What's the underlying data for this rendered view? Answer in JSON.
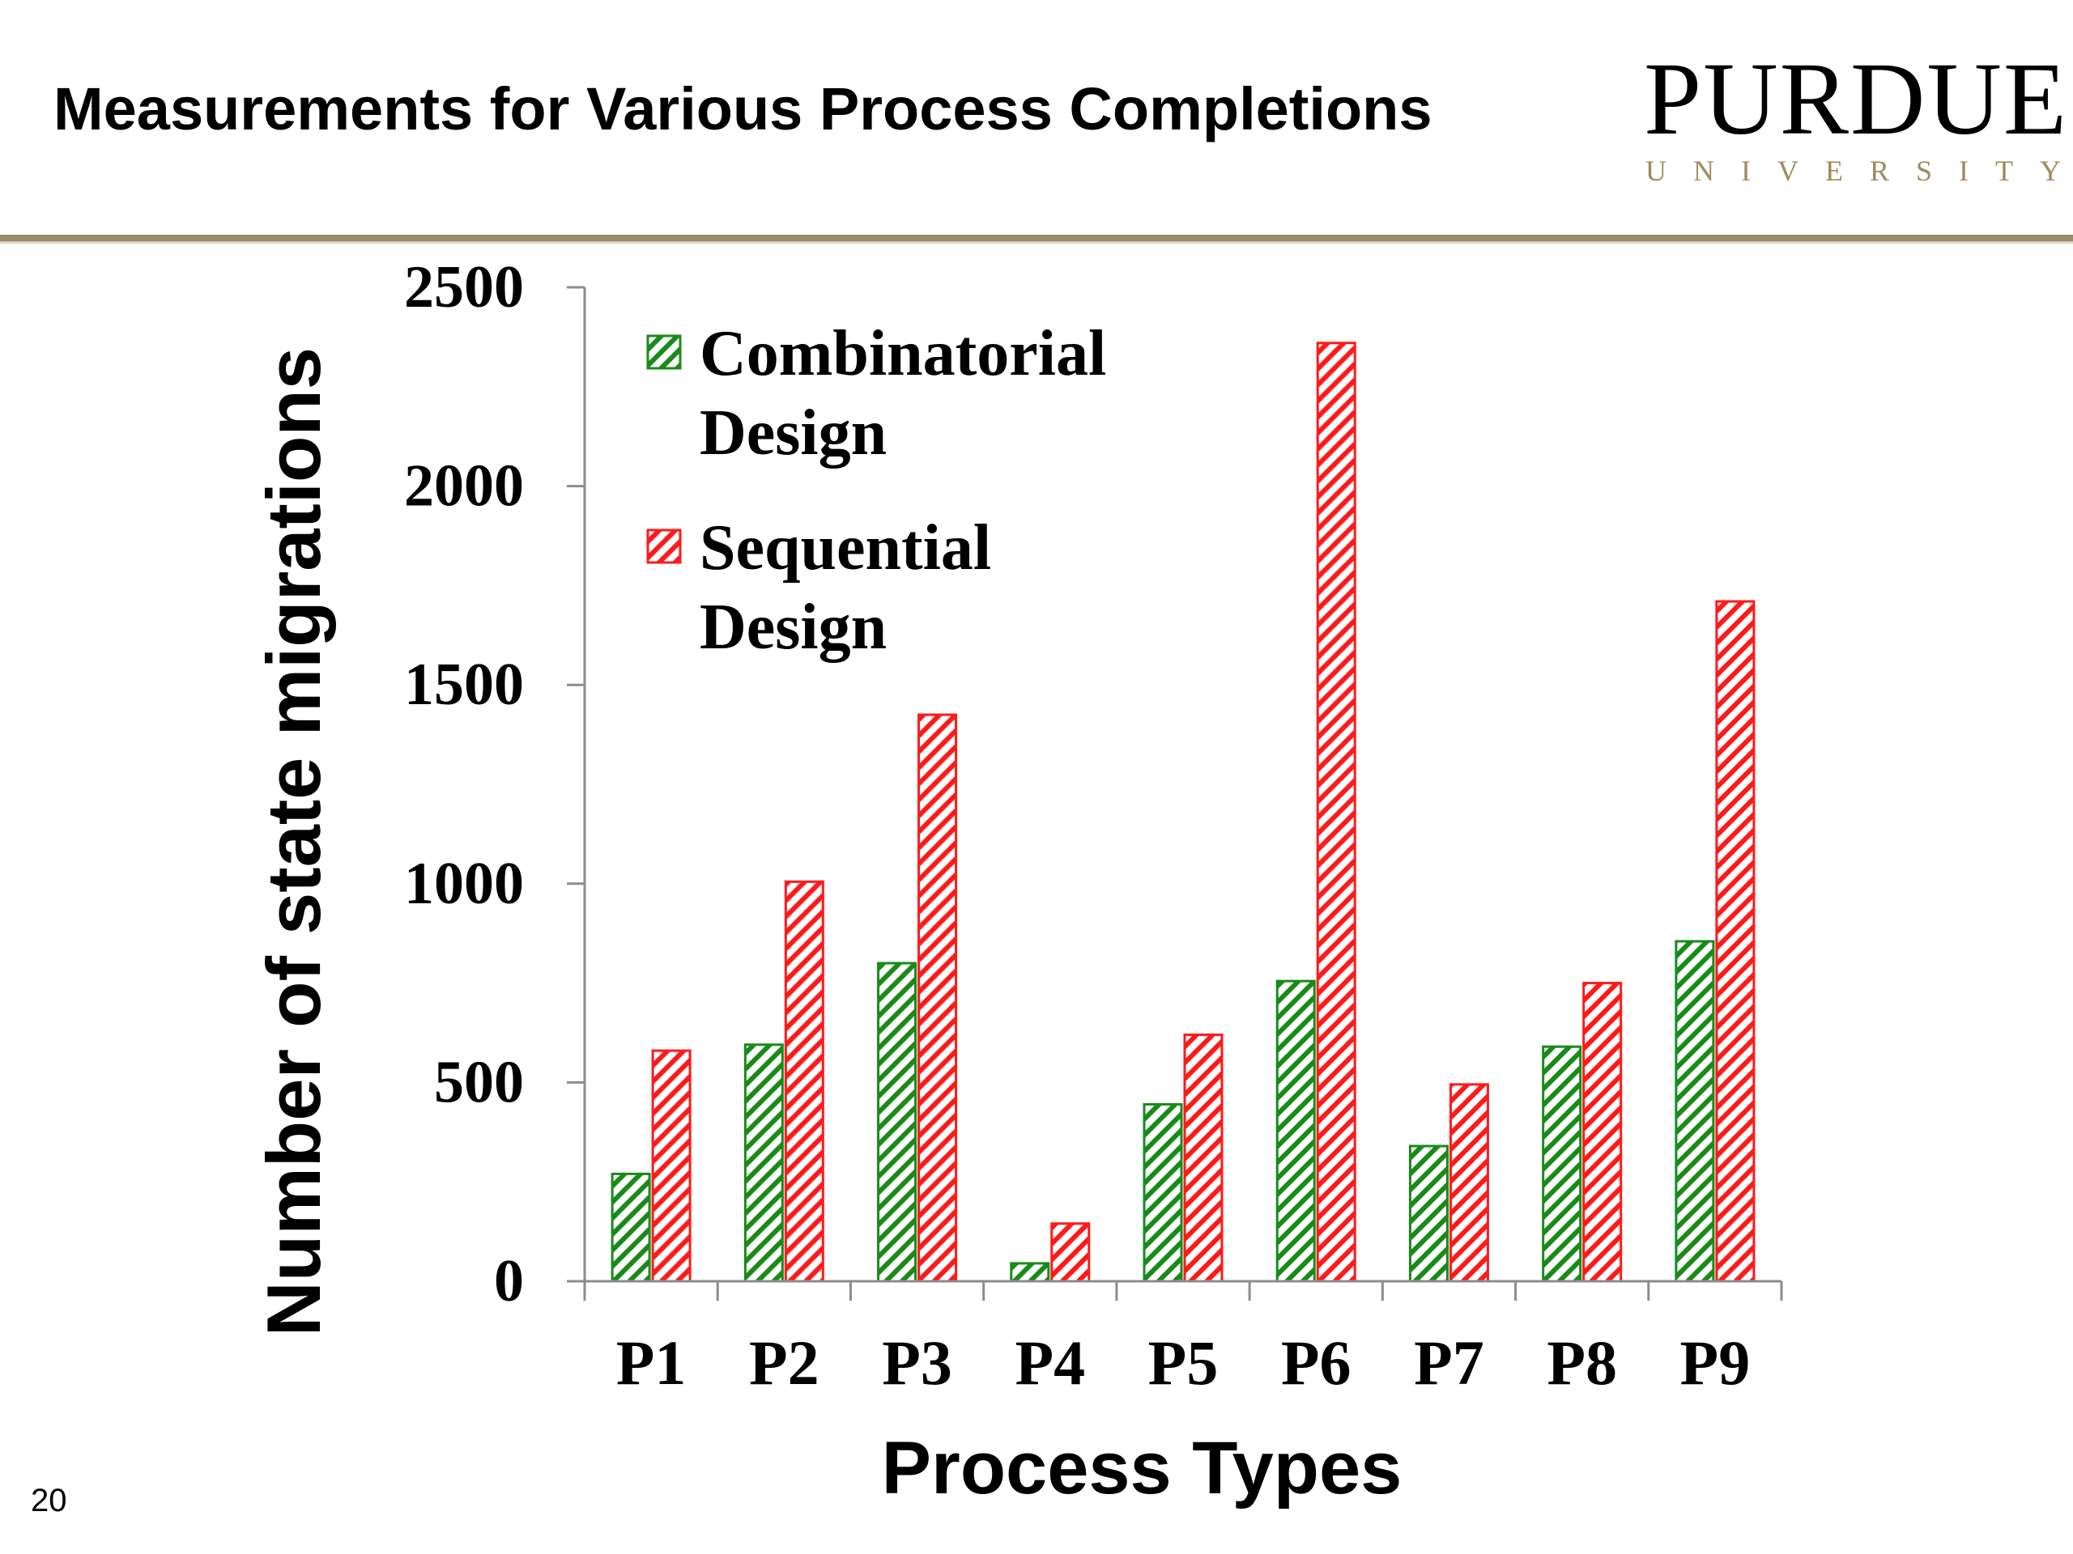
{
  "slide": {
    "title": "Measurements for Various Process Completions",
    "logo_word": "PURDUE",
    "logo_sub": "UNIVERSITY",
    "page_number": "20"
  },
  "colors": {
    "combinatorial": "#1a8a1a",
    "sequential": "#ff1a1a",
    "header_rule": "#9b8b6a",
    "logo_gold": "#a08a5b"
  },
  "chart_data": {
    "type": "bar",
    "categories": [
      "P1",
      "P2",
      "P3",
      "P4",
      "P5",
      "P6",
      "P7",
      "P8",
      "P9"
    ],
    "series": [
      {
        "name": "Combinatorial Design",
        "name_lines": [
          "Combinatorial",
          "Design"
        ],
        "values": [
          270,
          595,
          800,
          45,
          445,
          755,
          340,
          590,
          855
        ]
      },
      {
        "name": "Sequential Design",
        "name_lines": [
          "Sequential",
          "Design"
        ],
        "values": [
          580,
          1005,
          1425,
          145,
          620,
          2360,
          495,
          750,
          1710
        ]
      }
    ],
    "xlabel": "Process Types",
    "ylabel": "Number of state migrations",
    "ylim": [
      0,
      2500
    ],
    "yticks": [
      0,
      500,
      1000,
      1500,
      2000,
      2500
    ],
    "grid": false,
    "legend_position": "top-left"
  }
}
